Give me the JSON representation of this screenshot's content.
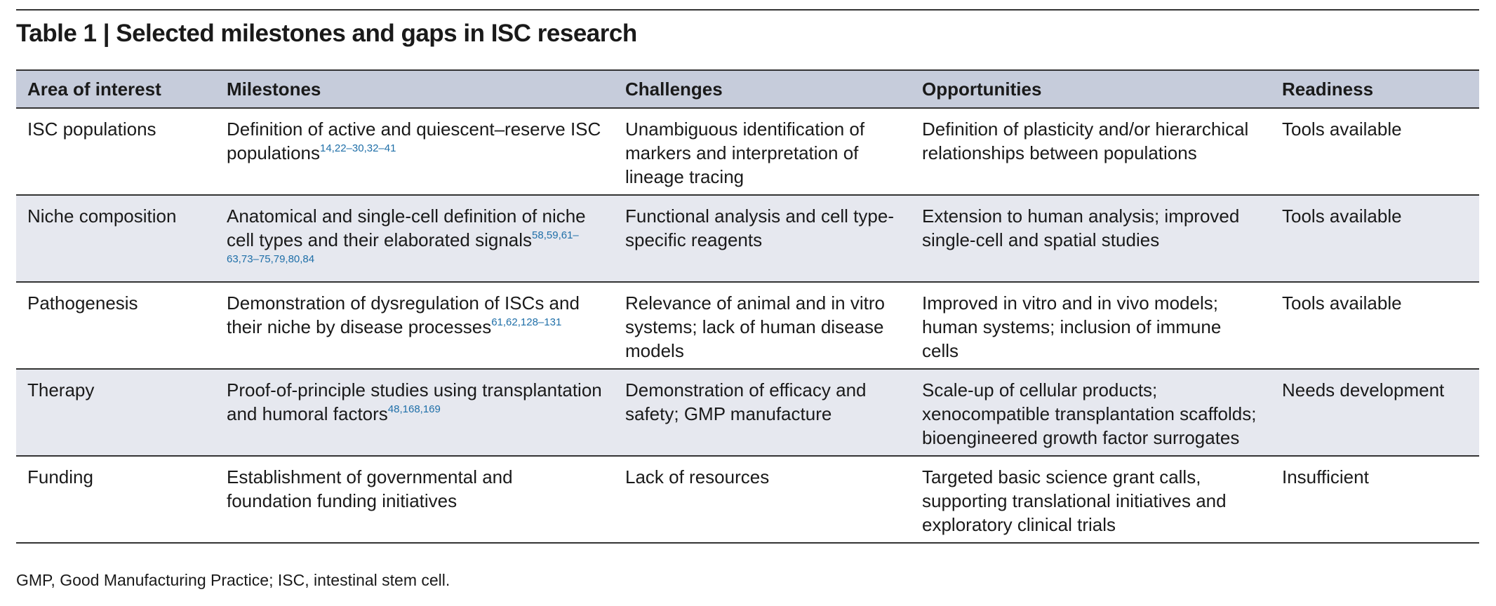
{
  "header": {
    "title": "Table 1 | Selected milestones and gaps in ISC research"
  },
  "table": {
    "columns": [
      "Area of interest",
      "Milestones",
      "Challenges",
      "Opportunities",
      "Readiness"
    ],
    "rows": [
      {
        "area": "ISC populations",
        "milestones": "Definition of active and quiescent–reserve ISC populations",
        "refs": "14,22–30,32–41",
        "challenges": "Unambiguous identification of markers and interpretation of lineage tracing",
        "opportunities": "Definition of plasticity and/or hierarchical relationships between populations",
        "readiness": "Tools available"
      },
      {
        "area": "Niche composition",
        "milestones": "Anatomical and single-cell definition of niche cell types and their elaborated signals",
        "refs": "58,59,61–63,73–75,79,80,84",
        "challenges": "Functional analysis and cell type-specific reagents",
        "opportunities": "Extension to human analysis; improved single-cell and spatial studies",
        "readiness": "Tools available"
      },
      {
        "area": "Pathogenesis",
        "milestones": "Demonstration of dysregulation of ISCs and their niche by disease processes",
        "refs": "61,62,128–131",
        "challenges": "Relevance of animal and in vitro systems; lack of human disease models",
        "opportunities": "Improved in vitro and in vivo models; human systems; inclusion of immune cells",
        "readiness": "Tools available"
      },
      {
        "area": "Therapy",
        "milestones": "Proof-of-principle studies using transplantation and humoral factors",
        "refs": "48,168,169",
        "challenges": "Demonstration of efficacy and safety; GMP manufacture",
        "opportunities": "Scale-up of cellular products; xenocompatible transplantation scaffolds; bioengineered growth factor surrogates",
        "readiness": "Needs development"
      },
      {
        "area": "Funding",
        "milestones": "Establishment of governmental and foundation funding initiatives",
        "refs": null,
        "challenges": "Lack of resources",
        "opportunities": "Targeted basic science grant calls, supporting translational initiatives and exploratory clinical trials",
        "readiness": "Insufficient"
      }
    ]
  },
  "footnote": "GMP, Good Manufacturing Practice; ISC, intestinal stem cell."
}
